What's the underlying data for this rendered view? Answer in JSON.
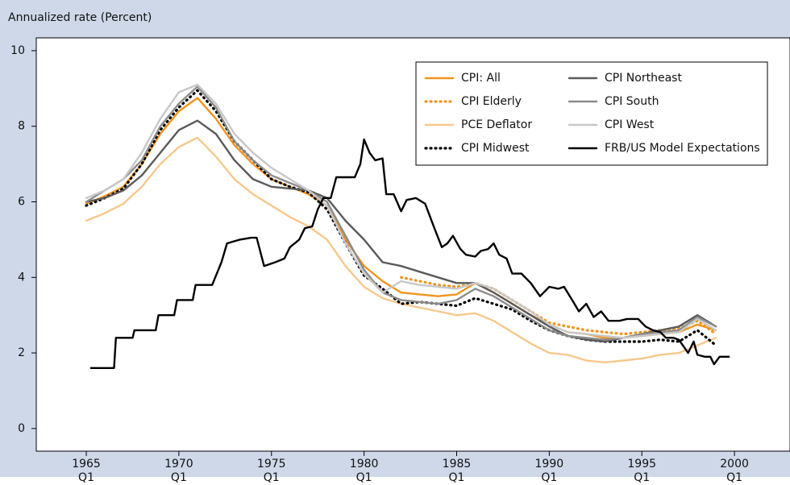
{
  "chart_data": {
    "type": "line",
    "y_axis_label": "Annualized rate (Percent)",
    "xlim": [
      1962.3,
      2003
    ],
    "ylim": [
      -0.6,
      10.34
    ],
    "yticks": [
      0,
      2,
      4,
      6,
      8,
      10
    ],
    "xticks": [
      {
        "value": 1965,
        "label": "1965\nQ1"
      },
      {
        "value": 1970,
        "label": "1970\nQ1"
      },
      {
        "value": 1975,
        "label": "1975\nQ1"
      },
      {
        "value": 1980,
        "label": "1980\nQ1"
      },
      {
        "value": 1985,
        "label": "1985\nQ1"
      },
      {
        "value": 1990,
        "label": "1990\nQ1"
      },
      {
        "value": 1995,
        "label": "1995\nQ1"
      },
      {
        "value": 2000,
        "label": "2000\nQ1"
      }
    ],
    "grid": false,
    "legend": "top-right",
    "x": [
      1965,
      1966,
      1967,
      1968,
      1969,
      1970,
      1971,
      1972,
      1973,
      1974,
      1975,
      1976,
      1977,
      1978,
      1979,
      1980,
      1981,
      1982,
      1983,
      1984,
      1985,
      1986,
      1987,
      1988,
      1989,
      1990,
      1991,
      1992,
      1993,
      1994,
      1995,
      1996,
      1997,
      1998,
      1999
    ],
    "series": [
      {
        "name": "CPI: All",
        "color": "#f0941e",
        "style": "solid",
        "values": [
          5.95,
          6.15,
          6.4,
          7.0,
          7.8,
          8.4,
          8.75,
          8.2,
          7.5,
          7.0,
          6.6,
          6.4,
          6.2,
          5.9,
          5.0,
          4.3,
          3.9,
          3.6,
          3.55,
          3.5,
          3.55,
          3.85,
          3.6,
          3.3,
          3.0,
          2.75,
          2.55,
          2.5,
          2.4,
          2.4,
          2.45,
          2.5,
          2.55,
          2.75,
          2.6
        ]
      },
      {
        "name": "CPI Elderly",
        "color": "#f0941e",
        "style": "dotted",
        "values": [
          null,
          null,
          null,
          null,
          null,
          null,
          null,
          null,
          null,
          null,
          null,
          null,
          null,
          null,
          null,
          null,
          null,
          4.0,
          3.9,
          3.8,
          3.75,
          3.85,
          3.7,
          3.4,
          3.1,
          2.8,
          2.7,
          2.6,
          2.55,
          2.5,
          2.55,
          2.6,
          2.65,
          2.85,
          2.5
        ]
      },
      {
        "name": "PCE Deflator",
        "color": "#f7c88c",
        "style": "solid",
        "values": [
          5.5,
          5.7,
          5.95,
          6.4,
          7.0,
          7.45,
          7.7,
          7.2,
          6.6,
          6.2,
          5.9,
          5.6,
          5.35,
          5.0,
          4.3,
          3.75,
          3.45,
          3.3,
          3.2,
          3.1,
          3.0,
          3.05,
          2.85,
          2.55,
          2.25,
          2.0,
          1.95,
          1.8,
          1.75,
          1.8,
          1.85,
          1.95,
          2.0,
          2.2,
          2.4
        ]
      },
      {
        "name": "CPI Midwest",
        "color": "#000000",
        "style": "dotted",
        "values": [
          5.9,
          6.1,
          6.35,
          7.0,
          7.9,
          8.5,
          8.95,
          8.4,
          7.6,
          7.1,
          6.6,
          6.4,
          6.25,
          5.8,
          4.9,
          4.05,
          3.7,
          3.3,
          3.35,
          3.3,
          3.25,
          3.45,
          3.3,
          3.15,
          2.85,
          2.6,
          2.45,
          2.35,
          2.3,
          2.3,
          2.3,
          2.35,
          2.3,
          2.6,
          2.2
        ]
      },
      {
        "name": "CPI Northeast",
        "color": "#5a5a5a",
        "style": "solid",
        "values": [
          6.0,
          6.1,
          6.3,
          6.7,
          7.3,
          7.9,
          8.15,
          7.8,
          7.1,
          6.6,
          6.4,
          6.35,
          6.3,
          6.1,
          5.5,
          5.0,
          4.4,
          4.3,
          4.15,
          4.0,
          3.85,
          3.85,
          3.6,
          3.3,
          3.0,
          2.7,
          2.45,
          2.35,
          2.3,
          2.4,
          2.5,
          2.6,
          2.7,
          3.0,
          2.7
        ]
      },
      {
        "name": "CPI South",
        "color": "#8c8c8c",
        "style": "solid",
        "values": [
          6.0,
          6.3,
          6.6,
          7.1,
          8.0,
          8.6,
          9.05,
          8.5,
          7.6,
          7.1,
          6.7,
          6.5,
          6.3,
          6.0,
          5.1,
          4.2,
          3.6,
          3.4,
          3.35,
          3.3,
          3.4,
          3.7,
          3.5,
          3.2,
          2.9,
          2.6,
          2.45,
          2.4,
          2.35,
          2.4,
          2.5,
          2.55,
          2.6,
          2.95,
          2.7
        ]
      },
      {
        "name": "CPI West",
        "color": "#c8c8c8",
        "style": "solid",
        "values": [
          6.1,
          6.3,
          6.6,
          7.3,
          8.2,
          8.9,
          9.1,
          8.6,
          7.8,
          7.3,
          6.9,
          6.6,
          6.3,
          5.9,
          4.9,
          4.1,
          3.6,
          3.9,
          3.8,
          3.75,
          3.7,
          3.85,
          3.7,
          3.4,
          3.1,
          2.75,
          2.55,
          2.5,
          2.45,
          2.4,
          2.45,
          2.5,
          2.55,
          2.9,
          2.6
        ]
      },
      {
        "name": "FRB/US Model Expectations",
        "color": "#000000",
        "style": "solid",
        "x": [
          1965.25,
          1966.5,
          1966.6,
          1967.5,
          1967.6,
          1968.75,
          1968.9,
          1969.75,
          1969.9,
          1970.75,
          1970.9,
          1971.8,
          1972.3,
          1972.6,
          1973.3,
          1973.9,
          1974.2,
          1974.6,
          1975.2,
          1975.7,
          1976,
          1976.5,
          1976.8,
          1977.2,
          1977.5,
          1977.8,
          1978.2,
          1978.5,
          1979.5,
          1979.8,
          1980,
          1980.3,
          1980.6,
          1981,
          1981.2,
          1981.6,
          1982,
          1982.3,
          1982.8,
          1983.3,
          1983.8,
          1984.2,
          1984.5,
          1984.8,
          1985.2,
          1985.5,
          1986,
          1986.3,
          1986.7,
          1987,
          1987.3,
          1987.7,
          1988,
          1988.5,
          1989,
          1989.5,
          1990,
          1990.5,
          1990.8,
          1991.3,
          1991.6,
          1992,
          1992.4,
          1992.8,
          1993.2,
          1993.8,
          1994.2,
          1994.8,
          1995.2,
          1995.6,
          1996,
          1996.3,
          1996.7,
          1997,
          1997.5,
          1997.8,
          1998,
          1998.4,
          1998.7,
          1998.9,
          1999.2,
          1999.7
        ],
        "values": [
          1.6,
          1.6,
          2.4,
          2.4,
          2.6,
          2.6,
          3.0,
          3.0,
          3.4,
          3.4,
          3.8,
          3.8,
          4.4,
          4.9,
          5.0,
          5.05,
          5.05,
          4.3,
          4.4,
          4.5,
          4.8,
          5.0,
          5.3,
          5.35,
          5.8,
          6.1,
          6.1,
          6.65,
          6.65,
          7.0,
          7.65,
          7.3,
          7.1,
          7.15,
          6.2,
          6.2,
          5.75,
          6.05,
          6.1,
          5.95,
          5.3,
          4.8,
          4.9,
          5.1,
          4.75,
          4.6,
          4.55,
          4.7,
          4.75,
          4.9,
          4.6,
          4.5,
          4.1,
          4.1,
          3.85,
          3.5,
          3.75,
          3.7,
          3.75,
          3.35,
          3.1,
          3.3,
          2.95,
          3.1,
          2.85,
          2.85,
          2.9,
          2.9,
          2.7,
          2.6,
          2.55,
          2.4,
          2.4,
          2.35,
          2.0,
          2.3,
          1.95,
          1.9,
          1.9,
          1.7,
          1.9,
          1.9
        ]
      }
    ]
  }
}
